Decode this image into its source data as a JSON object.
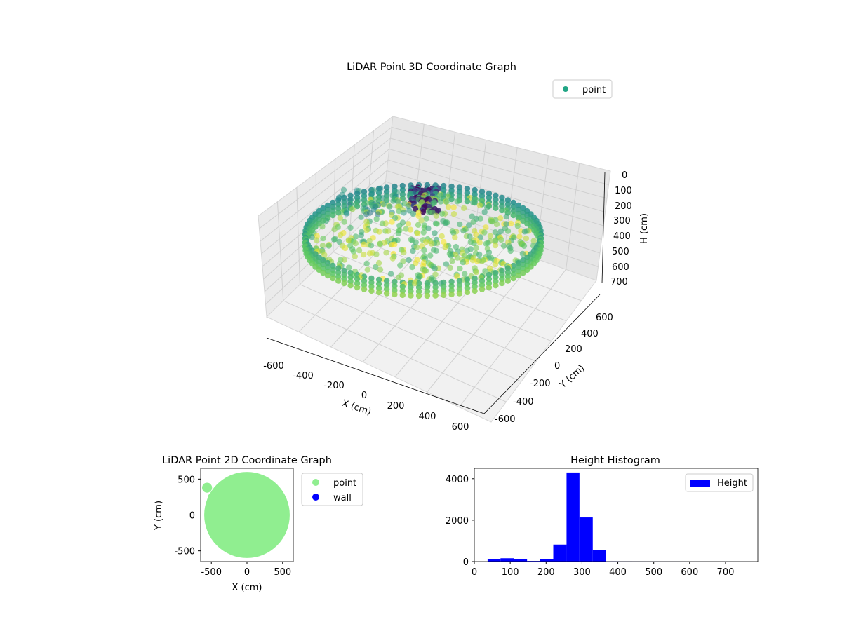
{
  "chart_data": [
    {
      "type": "scatter3d",
      "title": "LiDAR Point 3D Coordinate Graph",
      "xlabel": "X (cm)",
      "ylabel": "Y (cm)",
      "zlabel": "H (cm)",
      "xlim": [
        -650,
        650
      ],
      "ylim": [
        -650,
        650
      ],
      "zlim": [
        0,
        750
      ],
      "z_inverted": true,
      "xticks": [
        -600,
        -400,
        -200,
        0,
        200,
        400,
        600
      ],
      "yticks": [
        -600,
        -400,
        -200,
        0,
        200,
        400,
        600
      ],
      "zticks": [
        0,
        100,
        200,
        300,
        400,
        500,
        600,
        700
      ],
      "colormap": "viridis",
      "grid": true,
      "legend": {
        "placement": "top-right",
        "entries": [
          {
            "name": "point",
            "color": "#21a585"
          }
        ]
      },
      "series": [
        {
          "name": "point",
          "description_points": {
            "wall_ring_radius": 600,
            "wall_height_range": [
              250,
              300
            ],
            "inner_floor_height_range": [
              250,
              330
            ],
            "elevated_cluster_xyz": [
              [
                -50,
                300,
                80
              ],
              [
                0,
                280,
                60
              ],
              [
                -80,
                350,
                100
              ]
            ]
          }
        }
      ]
    },
    {
      "type": "scatter",
      "title": "LiDAR Point 2D Coordinate Graph",
      "xlabel": "X (cm)",
      "ylabel": "Y (cm)",
      "xlim": [
        -650,
        650
      ],
      "ylim": [
        -650,
        650
      ],
      "xticks": [
        -500,
        0,
        500
      ],
      "yticks": [
        -500,
        0,
        500
      ],
      "legend": {
        "placement": "right-outside",
        "entries": [
          {
            "name": "point",
            "color": "#90ee90"
          },
          {
            "name": "wall",
            "color": "#0000ff"
          }
        ]
      },
      "series": [
        {
          "name": "point",
          "shape": "disk",
          "radius": 600
        },
        {
          "name": "wall",
          "points": []
        }
      ]
    },
    {
      "type": "bar",
      "title": "Height Histogram",
      "xlim": [
        0,
        790
      ],
      "ylim": [
        0,
        4500
      ],
      "xticks": [
        0,
        100,
        200,
        300,
        400,
        500,
        600,
        700
      ],
      "yticks": [
        0,
        2000,
        4000
      ],
      "legend": {
        "placement": "top-right",
        "entries": [
          {
            "name": "Height",
            "color": "#0000ff"
          }
        ]
      },
      "bins": [
        {
          "start": 37,
          "end": 73,
          "count": 120
        },
        {
          "start": 73,
          "end": 110,
          "count": 160
        },
        {
          "start": 110,
          "end": 147,
          "count": 130
        },
        {
          "start": 147,
          "end": 183,
          "count": 30
        },
        {
          "start": 183,
          "end": 220,
          "count": 130
        },
        {
          "start": 220,
          "end": 257,
          "count": 820
        },
        {
          "start": 257,
          "end": 293,
          "count": 4300
        },
        {
          "start": 293,
          "end": 330,
          "count": 2130
        },
        {
          "start": 330,
          "end": 367,
          "count": 550
        },
        {
          "start": 367,
          "end": 403,
          "count": 12
        },
        {
          "start": 403,
          "end": 440,
          "count": 6
        },
        {
          "start": 440,
          "end": 477,
          "count": 4
        },
        {
          "start": 477,
          "end": 513,
          "count": 3
        },
        {
          "start": 513,
          "end": 550,
          "count": 2
        },
        {
          "start": 550,
          "end": 587,
          "count": 2
        },
        {
          "start": 587,
          "end": 623,
          "count": 1
        },
        {
          "start": 623,
          "end": 660,
          "count": 1
        },
        {
          "start": 660,
          "end": 697,
          "count": 1
        },
        {
          "start": 697,
          "end": 733,
          "count": 1
        },
        {
          "start": 733,
          "end": 770,
          "count": 1
        }
      ]
    }
  ]
}
